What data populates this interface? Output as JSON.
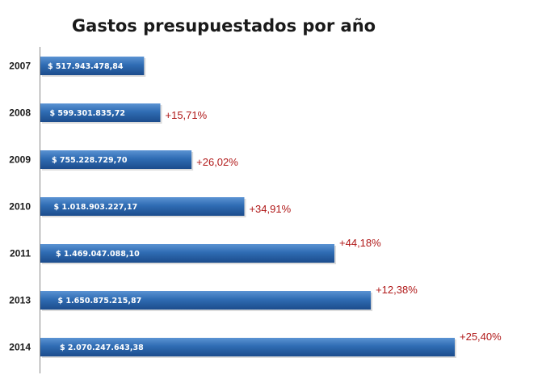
{
  "chart_data": {
    "type": "bar",
    "orientation": "horizontal",
    "title": "Gastos presupuestados por año",
    "categories": [
      "2007",
      "2008",
      "2009",
      "2010",
      "2011",
      "2013",
      "2014"
    ],
    "values": [
      517943478.84,
      599301835.72,
      755228729.7,
      1018903227.17,
      1469047088.1,
      1650875215.87,
      2070247643.38
    ],
    "value_labels": [
      "$ 517.943.478,84",
      "$ 599.301.835,72",
      "$ 755.228.729,70",
      "$ 1.018.903.227,17",
      "$ 1.469.047.088,10",
      "$ 1.650.875.215,87",
      "$ 2.070.247.643,38"
    ],
    "annotations": [
      "",
      "+15,71%",
      "+26,02%",
      "+34,91%",
      "+44,18%",
      "+12,38%",
      "+25,40%"
    ],
    "xlim": [
      0,
      2070247643.38
    ],
    "grid": false,
    "colors": {
      "bar": "#2f6cb3",
      "bar_light": "#5b93d3",
      "bar_dark": "#1c4c8c",
      "annotation": "#b01818"
    }
  }
}
